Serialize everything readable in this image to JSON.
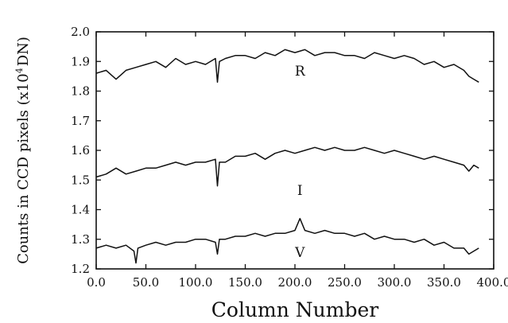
{
  "chart_data": {
    "type": "line",
    "xlabel": "Column Number",
    "ylabel": "Counts in CCD pixels (x10",
    "ylabel_sup": "4",
    "ylabel_end": "DN)",
    "xlim": [
      0,
      400
    ],
    "ylim": [
      1.2,
      2.0
    ],
    "x_ticks": [
      0,
      50,
      100,
      150,
      200,
      250,
      300,
      350,
      400
    ],
    "x_tick_labels": [
      "0.0",
      "50.0",
      "100.0",
      "150.0",
      "200.0",
      "250.0",
      "300.0",
      "350.0",
      "400.0"
    ],
    "y_ticks": [
      1.2,
      1.3,
      1.4,
      1.5,
      1.6,
      1.7,
      1.8,
      1.9,
      2.0
    ],
    "y_tick_labels": [
      "1.2",
      "1.3",
      "1.4",
      "1.5",
      "1.6",
      "1.7",
      "1.8",
      "1.9",
      "2.0"
    ],
    "grid": false,
    "legend": "none",
    "series": [
      {
        "name": "R",
        "label_at": [
          205,
          1.853
        ],
        "x": [
          0,
          10,
          20,
          30,
          40,
          50,
          60,
          70,
          80,
          90,
          100,
          110,
          120,
          122,
          124,
          130,
          140,
          150,
          160,
          170,
          180,
          190,
          200,
          210,
          220,
          230,
          240,
          250,
          260,
          270,
          280,
          290,
          300,
          310,
          320,
          330,
          340,
          350,
          360,
          370,
          375,
          380,
          385
        ],
        "values": [
          1.86,
          1.87,
          1.84,
          1.87,
          1.88,
          1.89,
          1.9,
          1.88,
          1.91,
          1.89,
          1.9,
          1.89,
          1.91,
          1.83,
          1.9,
          1.91,
          1.92,
          1.92,
          1.91,
          1.93,
          1.92,
          1.94,
          1.93,
          1.94,
          1.92,
          1.93,
          1.93,
          1.92,
          1.92,
          1.91,
          1.93,
          1.92,
          1.91,
          1.92,
          1.91,
          1.89,
          1.9,
          1.88,
          1.89,
          1.87,
          1.85,
          1.84,
          1.83
        ]
      },
      {
        "name": "I",
        "label_at": [
          205,
          1.45
        ],
        "x": [
          0,
          10,
          20,
          30,
          40,
          50,
          60,
          70,
          80,
          90,
          100,
          110,
          120,
          122,
          124,
          130,
          140,
          150,
          160,
          170,
          180,
          190,
          200,
          210,
          220,
          230,
          240,
          250,
          260,
          270,
          280,
          290,
          300,
          310,
          320,
          330,
          340,
          350,
          360,
          370,
          375,
          380,
          385
        ],
        "values": [
          1.51,
          1.52,
          1.54,
          1.52,
          1.53,
          1.54,
          1.54,
          1.55,
          1.56,
          1.55,
          1.56,
          1.56,
          1.57,
          1.48,
          1.56,
          1.56,
          1.58,
          1.58,
          1.59,
          1.57,
          1.59,
          1.6,
          1.59,
          1.6,
          1.61,
          1.6,
          1.61,
          1.6,
          1.6,
          1.61,
          1.6,
          1.59,
          1.6,
          1.59,
          1.58,
          1.57,
          1.58,
          1.57,
          1.56,
          1.55,
          1.53,
          1.55,
          1.54
        ]
      },
      {
        "name": "V",
        "label_at": [
          205,
          1.24
        ],
        "x": [
          0,
          10,
          20,
          30,
          38,
          40,
          42,
          50,
          60,
          70,
          80,
          90,
          100,
          110,
          120,
          122,
          124,
          130,
          140,
          150,
          160,
          170,
          180,
          190,
          200,
          205,
          210,
          220,
          230,
          240,
          250,
          260,
          270,
          280,
          290,
          300,
          310,
          320,
          330,
          340,
          350,
          360,
          370,
          375,
          380,
          385
        ],
        "values": [
          1.27,
          1.28,
          1.27,
          1.28,
          1.26,
          1.22,
          1.27,
          1.28,
          1.29,
          1.28,
          1.29,
          1.29,
          1.3,
          1.3,
          1.29,
          1.25,
          1.3,
          1.3,
          1.31,
          1.31,
          1.32,
          1.31,
          1.32,
          1.32,
          1.33,
          1.37,
          1.33,
          1.32,
          1.33,
          1.32,
          1.32,
          1.31,
          1.32,
          1.3,
          1.31,
          1.3,
          1.3,
          1.29,
          1.3,
          1.28,
          1.29,
          1.27,
          1.27,
          1.25,
          1.26,
          1.27
        ]
      }
    ]
  }
}
